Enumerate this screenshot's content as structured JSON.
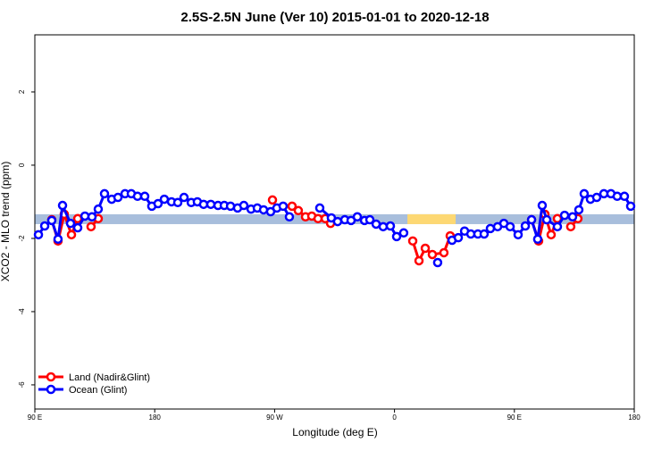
{
  "chart_data": {
    "type": "line",
    "title": "2.5S-2.5N June (Ver 10)   2015-01-01 to 2020-12-18",
    "x_label": "Longitude (deg E)",
    "y_label": "XCO2 - MLO trend (ppm)",
    "xlim": [
      90,
      540
    ],
    "xticks": [
      {
        "value": 90,
        "label": "90 E"
      },
      180,
      {
        "value": 270,
        "label": "90 W"
      },
      {
        "value": 360,
        "label": "0"
      },
      {
        "value": 450,
        "label": "90 E"
      },
      {
        "value": 540,
        "label": "180"
      }
    ],
    "ylim": [
      -6.66,
      3.56
    ],
    "yticks": [
      2,
      0,
      -2,
      -4,
      -6
    ],
    "legend": "bottom-left",
    "bands": [
      {
        "color": "#a8bedc",
        "xlim": [
          90,
          540
        ],
        "ylim": [
          -1.61,
          -1.34
        ]
      },
      {
        "color": "#fdd873",
        "xlim": [
          369.7,
          405.9
        ],
        "ylim": [
          -1.61,
          -1.34
        ]
      }
    ],
    "series": [
      {
        "name": "Land (Nadir&Glint)",
        "color": "#ff0000",
        "x": [
          102.7,
          107.4,
          112.1,
          117.5,
          122.2,
          125,
          132.2,
          137.6,
          200,
          268.4,
          272,
          283.1,
          287.8,
          293.2,
          297.9,
          302.6,
          308.0,
          312.0,
          340,
          373.7,
          378.4,
          383.1,
          388.4,
          397.1,
          401.8,
          430,
          462.9,
          468.2,
          472.9,
          477.6,
          482.3,
          485,
          492.3,
          497.7
        ],
        "values": [
          -1.49,
          -2.07,
          -1.34,
          -1.9,
          -1.46,
          null,
          -1.68,
          -1.46,
          null,
          -0.95,
          null,
          -1.12,
          -1.24,
          -1.41,
          -1.39,
          -1.46,
          -1.46,
          -1.59,
          null,
          -2.07,
          -2.61,
          -2.27,
          -2.44,
          -2.39,
          -1.93,
          null,
          -1.49,
          -2.07,
          -1.34,
          -1.9,
          -1.46,
          null,
          -1.68,
          -1.46
        ]
      },
      {
        "name": "Ocean (Glint)",
        "color": "#0000ff",
        "x": [
          92.7,
          97.4,
          102.7,
          107.4,
          110.8,
          116.8,
          122.2,
          127.6,
          132.9,
          137.6,
          142.3,
          147.7,
          152.4,
          157.7,
          162.4,
          167.1,
          172.5,
          177.8,
          182.5,
          187.2,
          192.6,
          197.3,
          202.0,
          207.4,
          212.0,
          216.7,
          222.1,
          227.5,
          232.2,
          236.9,
          242.2,
          246.9,
          252.3,
          257.0,
          261.7,
          267.0,
          271.7,
          276.4,
          281.1,
          292,
          303.9,
          312.6,
          317.3,
          322.7,
          327.4,
          332.1,
          337.5,
          341.5,
          346.2,
          351.5,
          356.9,
          361.6,
          366.9,
          380,
          392.4,
          398,
          403.2,
          407.9,
          412.6,
          417.3,
          422.6,
          427.3,
          432.0,
          437.4,
          442.1,
          446.8,
          452.8,
          458.2,
          462.9,
          467.5,
          470.9,
          474.3,
          482.3,
          487.7,
          493.7,
          498.4,
          502.4,
          507.1,
          511.8,
          517.2,
          522.5,
          527.2,
          532.6,
          537.3
        ],
        "values": [
          -1.9,
          -1.66,
          -1.51,
          -2.02,
          -1.1,
          -1.59,
          -1.71,
          -1.39,
          -1.41,
          -1.2,
          -0.78,
          -0.93,
          -0.88,
          -0.78,
          -0.78,
          -0.85,
          -0.85,
          -1.12,
          -1.05,
          -0.93,
          -1.0,
          -1.02,
          -0.88,
          -1.02,
          -1.0,
          -1.07,
          -1.07,
          -1.1,
          -1.1,
          -1.12,
          -1.17,
          -1.1,
          -1.2,
          -1.17,
          -1.22,
          -1.27,
          -1.17,
          -1.12,
          -1.41,
          null,
          -1.17,
          -1.44,
          -1.54,
          -1.49,
          -1.51,
          -1.41,
          -1.51,
          -1.49,
          -1.61,
          -1.68,
          -1.66,
          -1.95,
          -1.85,
          null,
          -2.66,
          null,
          -2.05,
          -1.98,
          -1.8,
          -1.88,
          -1.88,
          -1.88,
          -1.73,
          -1.68,
          -1.59,
          -1.68,
          -1.9,
          -1.66,
          -1.49,
          -2.02,
          -1.1,
          -1.49,
          -1.68,
          -1.37,
          -1.41,
          -1.22,
          -0.78,
          -0.93,
          -0.88,
          -0.78,
          -0.78,
          -0.85,
          -0.85,
          -1.12
        ]
      }
    ]
  }
}
